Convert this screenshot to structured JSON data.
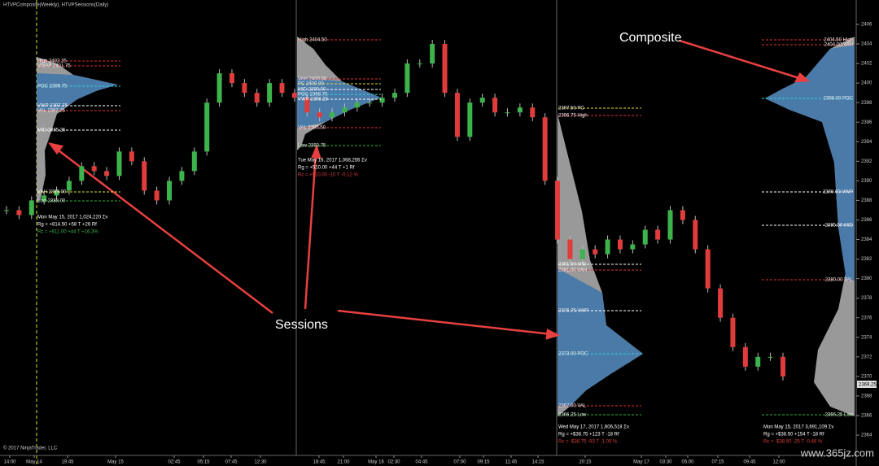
{
  "header": {
    "title": "HTVPComposite(Weekly), HTVPSessions(Daily)"
  },
  "y_axis": {
    "ticks": [
      2406,
      2404,
      2402,
      2400,
      2398,
      2396,
      2394,
      2392,
      2390,
      2388,
      2386,
      2384,
      2382,
      2380,
      2378,
      2376,
      2374,
      2372,
      2370,
      2368,
      2366,
      2364
    ]
  },
  "x_axis": {
    "labels": [
      "14:00",
      "May 14",
      "19:45",
      "May 15",
      "02:45",
      "05:15",
      "07:45",
      "12:30",
      "18:45",
      "21:00",
      "May 16",
      "02:30",
      "04:45",
      "07:00",
      "09:15",
      "11:45",
      "14:15",
      "20:15",
      "May 17",
      "03:30",
      "05:00",
      "07:15",
      "09:45",
      "12:00"
    ]
  },
  "sessions": [
    {
      "levels": [
        {
          "label": "High 2402.25",
          "color": "#e03030"
        },
        {
          "label": "VWAP 2401.75",
          "color": "#e03030"
        },
        {
          "label": "POC 2399.75",
          "color": "#30d0e0"
        },
        {
          "label": "VWP 2397.75",
          "color": "#ffffff"
        },
        {
          "label": "VAL 2397.25",
          "color": "#e03030"
        },
        {
          "label": "MID 2395.25",
          "color": "#ffffff"
        },
        {
          "label": "VAH 2389.00",
          "color": "#e0e030"
        },
        {
          "label": "Low 2388.00",
          "color": "#30b030"
        }
      ],
      "info": [
        "Mon  May 15, 2017      1,024,220 Σv",
        "Rg  =  +814.50    +58 T    +26 Rf",
        "Rc  =  +811.00    +44 T    +16.3%"
      ]
    },
    {
      "levels": [
        {
          "label": "High 2404.50",
          "color": "#e03030"
        },
        {
          "label": "VAH 2400.50",
          "color": "#e03030"
        },
        {
          "label": "PC 2400.00",
          "color": "#e0e030"
        },
        {
          "label": "MID 2399.50",
          "color": "#ffffff"
        },
        {
          "label": "POC 2398.75",
          "color": "#30d0e0"
        },
        {
          "label": "VWP 2398.25",
          "color": "#ffffff"
        },
        {
          "label": "VAL 2395.50",
          "color": "#e03030"
        },
        {
          "label": "Low 2393.75",
          "color": "#30b030"
        }
      ],
      "info": [
        "Tue  May 16, 2017      1,068,256 Σv",
        "Rg  =  +510.00    +44 T    +1 Rf",
        "Rc  =  +510.00    -10 T    -0.12 %"
      ]
    },
    {
      "levels": [
        {
          "label": "2397.50 PC",
          "color": "#e0e030"
        },
        {
          "label": "2396.75 High",
          "color": "#e03030"
        },
        {
          "label": "2381.00 MID",
          "color": "#ffffff"
        },
        {
          "label": "2381.00 VAH",
          "color": "#e03030"
        },
        {
          "label": "2376.75 VWP",
          "color": "#ffffff"
        },
        {
          "label": "2373.00 POC",
          "color": "#30d0e0"
        },
        {
          "label": "2367.00 VAL",
          "color": "#e03030"
        },
        {
          "label": "2366.25 Low",
          "color": "#30b030"
        }
      ],
      "info": [
        "Wed  May 17, 2017      1,606,518 Σv",
        "Rg  =  +$38.75    +123 T    -18 Rf",
        "Rc  =  -$38.75    -93 T    -1.05 %"
      ]
    }
  ],
  "composite": {
    "levels": [
      {
        "label": "2404.50 High",
        "color": "#e03030"
      },
      {
        "label": "2404.00 VAH",
        "color": "#e03030"
      },
      {
        "label": "2398.00 POC",
        "color": "#30d0e0"
      },
      {
        "label": "2389.00 VWP",
        "color": "#ffffff"
      },
      {
        "label": "2385.50 MID",
        "color": "#ffffff"
      },
      {
        "label": "2380.00 VAL",
        "color": "#e03030"
      },
      {
        "label": "2366.25 Low",
        "color": "#30b030"
      }
    ],
    "info": [
      "Mon  May 15, 2017      3,691,109 Σv",
      "Rg  =  +$38.50    +154 T    -18 Rf",
      "Rc  =  -$38.50    -25 T    -0.46 %"
    ]
  },
  "annotations": {
    "composite": "Composite",
    "sessions": "Sessions"
  },
  "price": {
    "last": "2369.25",
    "closes": [
      2387,
      2386.5,
      2388,
      2388.5,
      2389,
      2390,
      2391.5,
      2391,
      2390.5,
      2393,
      2392,
      2389,
      2388,
      2390,
      2391,
      2393,
      2398,
      2401,
      2400,
      2399,
      2398,
      2400,
      2399,
      2398.5,
      2397,
      2396.5,
      2397,
      2397.5,
      2398,
      2398,
      2398.5,
      2399,
      2402,
      2402,
      2404,
      2399,
      2394.5,
      2398,
      2398.5,
      2397,
      2397,
      2397.5,
      2396.5,
      2390,
      2384,
      2382,
      2383,
      2382.5,
      2384,
      2383,
      2383.5,
      2385,
      2384,
      2387,
      2386,
      2383,
      2379,
      2376,
      2373,
      2371,
      2372,
      2372,
      2370
    ]
  },
  "footer": {
    "copyright": "© 2017 NinjaTrader, LLC",
    "watermark": "www.365jz.com"
  }
}
